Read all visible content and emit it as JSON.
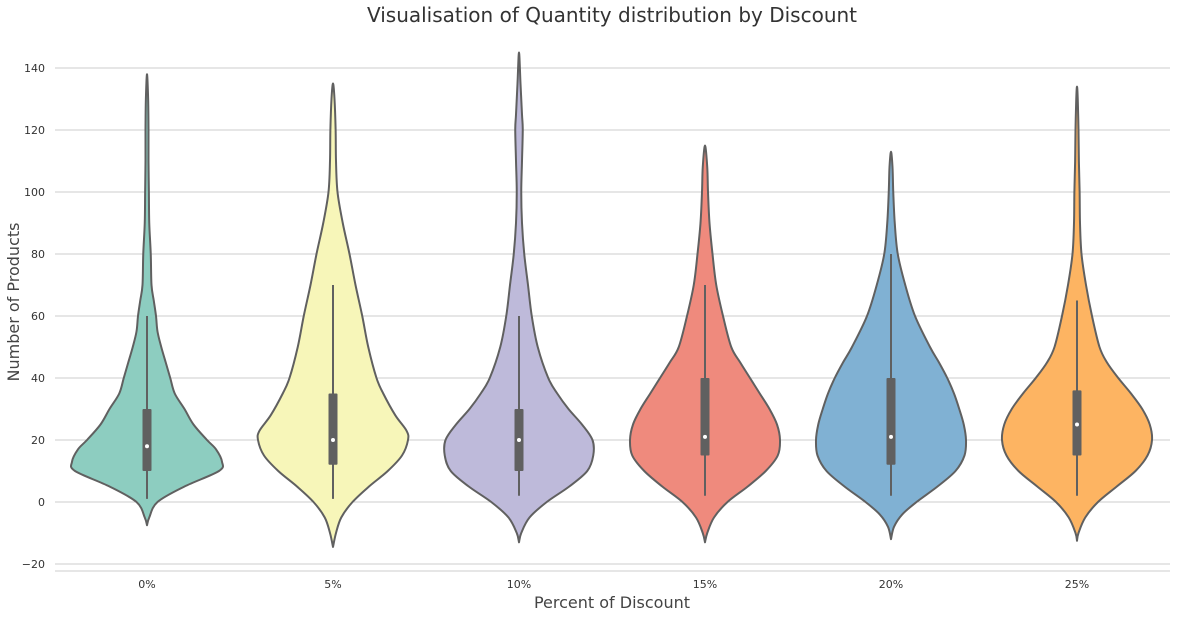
{
  "chart_data": {
    "type": "violin",
    "title": "Visualisation of Quantity distribution by Discount",
    "xlabel": "Percent of Discount",
    "ylabel": "Number of Products",
    "categories": [
      "0%",
      "5%",
      "10%",
      "15%",
      "20%",
      "25%"
    ],
    "ylim": [
      -23,
      146
    ],
    "yticks": [
      -20,
      0,
      20,
      40,
      60,
      80,
      100,
      120,
      140
    ],
    "grid": true,
    "colors": [
      "#8dcdc0",
      "#f7f6b9",
      "#bebada",
      "#ef8a7d",
      "#80b1d3",
      "#fdb462"
    ],
    "outline_color": "#606060",
    "violins": [
      {
        "category": "0%",
        "min": -7.5,
        "max": 138,
        "q1": 10,
        "median": 18,
        "q3": 30,
        "whisker_low": 1,
        "whisker_high": 60,
        "density": [
          [
            -7.5,
            0
          ],
          [
            -5,
            0.03
          ],
          [
            0,
            0.14
          ],
          [
            5,
            0.5
          ],
          [
            10,
            0.96
          ],
          [
            13,
            1.0
          ],
          [
            17,
            0.92
          ],
          [
            20,
            0.8
          ],
          [
            25,
            0.62
          ],
          [
            30,
            0.5
          ],
          [
            35,
            0.37
          ],
          [
            40,
            0.31
          ],
          [
            45,
            0.25
          ],
          [
            50,
            0.19
          ],
          [
            55,
            0.14
          ],
          [
            60,
            0.12
          ],
          [
            65,
            0.09
          ],
          [
            70,
            0.06
          ],
          [
            80,
            0.05
          ],
          [
            90,
            0.03
          ],
          [
            100,
            0.025
          ],
          [
            110,
            0.02
          ],
          [
            120,
            0.02
          ],
          [
            130,
            0.015
          ],
          [
            138,
            0
          ]
        ]
      },
      {
        "category": "5%",
        "min": -14.5,
        "max": 135,
        "q1": 12,
        "median": 20,
        "q3": 35,
        "whisker_low": 1,
        "whisker_high": 70,
        "density": [
          [
            -14.5,
            0
          ],
          [
            -10,
            0.04
          ],
          [
            -5,
            0.11
          ],
          [
            0,
            0.26
          ],
          [
            5,
            0.48
          ],
          [
            10,
            0.73
          ],
          [
            15,
            0.92
          ],
          [
            20,
            1.0
          ],
          [
            23,
            0.98
          ],
          [
            28,
            0.83
          ],
          [
            35,
            0.67
          ],
          [
            40,
            0.58
          ],
          [
            50,
            0.47
          ],
          [
            60,
            0.39
          ],
          [
            70,
            0.3
          ],
          [
            80,
            0.22
          ],
          [
            90,
            0.13
          ],
          [
            100,
            0.06
          ],
          [
            110,
            0.04
          ],
          [
            120,
            0.035
          ],
          [
            130,
            0.02
          ],
          [
            135,
            0
          ]
        ]
      },
      {
        "category": "10%",
        "min": -13,
        "max": 145,
        "q1": 10,
        "median": 20,
        "q3": 30,
        "whisker_low": 2,
        "whisker_high": 60,
        "density": [
          [
            -13,
            0
          ],
          [
            -10,
            0.03
          ],
          [
            -5,
            0.14
          ],
          [
            0,
            0.37
          ],
          [
            5,
            0.67
          ],
          [
            10,
            0.91
          ],
          [
            15,
            0.99
          ],
          [
            20,
            0.98
          ],
          [
            25,
            0.84
          ],
          [
            30,
            0.66
          ],
          [
            35,
            0.51
          ],
          [
            40,
            0.39
          ],
          [
            50,
            0.25
          ],
          [
            60,
            0.17
          ],
          [
            70,
            0.12
          ],
          [
            80,
            0.07
          ],
          [
            90,
            0.04
          ],
          [
            100,
            0.03
          ],
          [
            110,
            0.04
          ],
          [
            120,
            0.05
          ],
          [
            125,
            0.04
          ],
          [
            135,
            0.02
          ],
          [
            145,
            0
          ]
        ]
      },
      {
        "category": "15%",
        "min": -13,
        "max": 115,
        "q1": 15,
        "median": 21,
        "q3": 40,
        "whisker_low": 2,
        "whisker_high": 70,
        "density": [
          [
            -13,
            0
          ],
          [
            -10,
            0.03
          ],
          [
            -5,
            0.12
          ],
          [
            0,
            0.3
          ],
          [
            5,
            0.57
          ],
          [
            10,
            0.81
          ],
          [
            15,
            0.97
          ],
          [
            20,
            1.0
          ],
          [
            25,
            0.96
          ],
          [
            30,
            0.86
          ],
          [
            35,
            0.73
          ],
          [
            40,
            0.6
          ],
          [
            45,
            0.47
          ],
          [
            50,
            0.35
          ],
          [
            60,
            0.24
          ],
          [
            70,
            0.15
          ],
          [
            80,
            0.1
          ],
          [
            90,
            0.06
          ],
          [
            100,
            0.04
          ],
          [
            108,
            0.03
          ],
          [
            115,
            0
          ]
        ]
      },
      {
        "category": "20%",
        "min": -12,
        "max": 113,
        "q1": 12,
        "median": 21,
        "q3": 40,
        "whisker_low": 2,
        "whisker_high": 80,
        "density": [
          [
            -12,
            0
          ],
          [
            -8,
            0.04
          ],
          [
            -4,
            0.15
          ],
          [
            0,
            0.34
          ],
          [
            5,
            0.62
          ],
          [
            10,
            0.86
          ],
          [
            15,
            0.98
          ],
          [
            20,
            1.0
          ],
          [
            25,
            0.97
          ],
          [
            30,
            0.91
          ],
          [
            35,
            0.84
          ],
          [
            40,
            0.75
          ],
          [
            45,
            0.64
          ],
          [
            50,
            0.52
          ],
          [
            60,
            0.32
          ],
          [
            70,
            0.19
          ],
          [
            80,
            0.09
          ],
          [
            90,
            0.05
          ],
          [
            100,
            0.03
          ],
          [
            108,
            0.02
          ],
          [
            113,
            0
          ]
        ]
      },
      {
        "category": "25%",
        "min": -12.5,
        "max": 134,
        "q1": 15,
        "median": 25,
        "q3": 36,
        "whisker_low": 2,
        "whisker_high": 65,
        "density": [
          [
            -12.5,
            0
          ],
          [
            -10,
            0.02
          ],
          [
            -5,
            0.11
          ],
          [
            0,
            0.28
          ],
          [
            5,
            0.53
          ],
          [
            10,
            0.78
          ],
          [
            15,
            0.94
          ],
          [
            20,
            1.0
          ],
          [
            25,
            0.97
          ],
          [
            30,
            0.87
          ],
          [
            35,
            0.72
          ],
          [
            40,
            0.55
          ],
          [
            45,
            0.4
          ],
          [
            50,
            0.3
          ],
          [
            60,
            0.2
          ],
          [
            70,
            0.12
          ],
          [
            80,
            0.06
          ],
          [
            90,
            0.04
          ],
          [
            100,
            0.035
          ],
          [
            110,
            0.025
          ],
          [
            120,
            0.02
          ],
          [
            130,
            0.01
          ],
          [
            134,
            0
          ]
        ]
      }
    ]
  }
}
